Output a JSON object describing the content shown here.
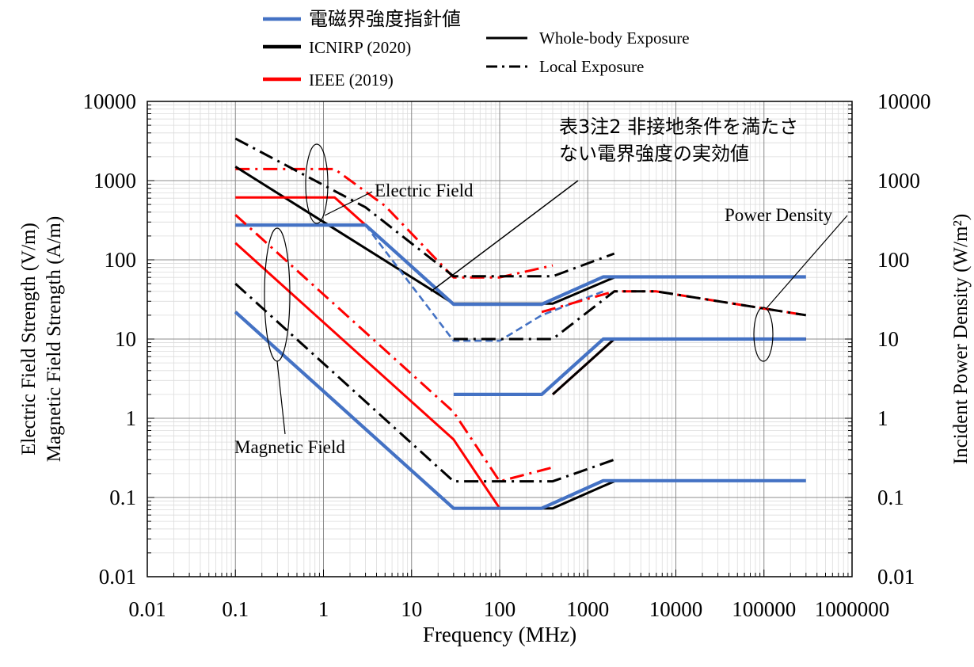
{
  "chart_data": {
    "type": "line",
    "xlabel": "Frequency (MHz)",
    "ylabel_left": [
      "Electric Field  Strength (V/m)",
      "Magnetic Field Strength (A/m)"
    ],
    "ylabel_right": "Incident  Power Density (W/m²)",
    "x_scale": "log",
    "y_scale": "log",
    "xlim": [
      0.01,
      1000000
    ],
    "ylim": [
      0.01,
      10000
    ],
    "x_ticks": [
      "0.01",
      "0.1",
      "1",
      "10",
      "100",
      "1000",
      "10000",
      "100000",
      "1000000"
    ],
    "y_ticks_left": [
      "0.01",
      "0.1",
      "1",
      "10",
      "100",
      "1000",
      "10000"
    ],
    "y_ticks_right": [
      "0.01",
      "0.1",
      "1",
      "10",
      "100",
      "1000",
      "10000"
    ],
    "grid": true,
    "legend": {
      "placement": "top",
      "colors": [
        {
          "label": "電磁界強度指針値",
          "color": "#4472c4"
        },
        {
          "label": "ICNIRP (2020)",
          "color": "#000000"
        },
        {
          "label": "IEEE (2019)",
          "color": "#ff0000"
        }
      ],
      "styles": [
        {
          "label": "Whole-body Exposure",
          "dash": "solid"
        },
        {
          "label": "Local Exposure",
          "dash": "dashdot"
        }
      ]
    },
    "annotations": {
      "note": [
        "表3注2  非接地条件を満たさ",
        "ない電界強度の実効値"
      ],
      "electric": "Electric Field",
      "power": "Power Density",
      "magnetic": "Magnetic Field"
    },
    "series": [
      {
        "group": "electric",
        "color": "#ff0000",
        "style": "dashdot",
        "x": [
          0.1,
          1.34,
          5,
          30,
          100,
          400
        ],
        "y": [
          1400,
          1400,
          480,
          60,
          60,
          85
        ]
      },
      {
        "group": "electric",
        "color": "#000000",
        "style": "dashdot",
        "x": [
          0.1,
          3,
          30,
          400,
          2000
        ],
        "y": [
          3400,
          460,
          62,
          62,
          120
        ]
      },
      {
        "group": "electric",
        "color": "#000000",
        "style": "solid",
        "x": [
          0.1,
          30,
          400,
          2000
        ],
        "y": [
          1500,
          28,
          28,
          60
        ]
      },
      {
        "group": "electric",
        "color": "#ff0000",
        "style": "solid",
        "x": [
          0.1,
          1.34,
          3
        ],
        "y": [
          614,
          614,
          275
        ]
      },
      {
        "group": "electric",
        "color": "#4472c4",
        "style": "solid",
        "x": [
          0.1,
          3,
          30,
          300,
          1500,
          300000
        ],
        "y": [
          275,
          275,
          27.5,
          27.5,
          61,
          61
        ]
      },
      {
        "group": "electric",
        "color": "#4472c4",
        "style": "dashed",
        "x": [
          3,
          30,
          100,
          300,
          1500
        ],
        "y": [
          275,
          9.5,
          9.5,
          20,
          40
        ]
      },
      {
        "group": "electric",
        "color": "#ff0000",
        "style": "dashdot",
        "x": [
          300,
          2000,
          6000,
          300000
        ],
        "y": [
          22,
          40,
          40,
          20
        ]
      },
      {
        "group": "electric",
        "color": "#000000",
        "style": "dashdot",
        "x": [
          30,
          400,
          2000,
          6000,
          300000
        ],
        "y": [
          10,
          10,
          40,
          40,
          20
        ]
      },
      {
        "group": "power",
        "color": "#ff0000",
        "style": "solid",
        "x": [
          400,
          2000,
          300000
        ],
        "y": [
          2,
          10,
          10
        ]
      },
      {
        "group": "power",
        "color": "#000000",
        "style": "solid",
        "x": [
          400,
          2000,
          300000
        ],
        "y": [
          2,
          10,
          10
        ]
      },
      {
        "group": "power",
        "color": "#4472c4",
        "style": "solid",
        "x": [
          30,
          300,
          1500,
          300000
        ],
        "y": [
          2,
          2,
          10,
          10
        ]
      },
      {
        "group": "magnetic",
        "color": "#ff0000",
        "style": "dashdot",
        "x": [
          0.1,
          30,
          100,
          400
        ],
        "y": [
          370,
          1.2,
          0.16,
          0.24
        ]
      },
      {
        "group": "magnetic",
        "color": "#ff0000",
        "style": "solid",
        "x": [
          0.1,
          30,
          100
        ],
        "y": [
          163,
          0.54,
          0.073
        ]
      },
      {
        "group": "magnetic",
        "color": "#000000",
        "style": "dashdot",
        "x": [
          0.1,
          30,
          400,
          2000
        ],
        "y": [
          50,
          0.16,
          0.16,
          0.3
        ]
      },
      {
        "group": "magnetic",
        "color": "#000000",
        "style": "solid",
        "x": [
          0.1,
          30,
          400,
          2000
        ],
        "y": [
          22,
          0.073,
          0.073,
          0.16
        ]
      },
      {
        "group": "magnetic",
        "color": "#4472c4",
        "style": "solid",
        "x": [
          0.1,
          30,
          300,
          1500,
          300000
        ],
        "y": [
          22,
          0.073,
          0.073,
          0.163,
          0.163
        ]
      }
    ]
  }
}
